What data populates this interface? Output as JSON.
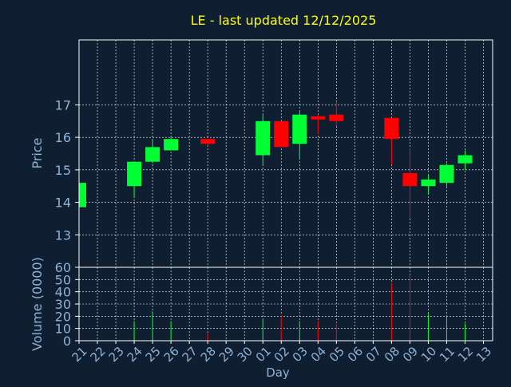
{
  "chart_data": [
    {
      "type": "candlestick",
      "title": "LE - last updated 12/12/2025",
      "ylabel": "Price",
      "ylim": [
        12,
        19
      ],
      "yticks": [
        13,
        14,
        15,
        16,
        17
      ],
      "grid": true,
      "categories": [
        "21",
        "22",
        "23",
        "24",
        "25",
        "26",
        "27",
        "28",
        "29",
        "30",
        "01",
        "02",
        "03",
        "04",
        "05",
        "06",
        "07",
        "08",
        "09",
        "10",
        "11",
        "12",
        "13"
      ],
      "candles": [
        {
          "day": "21",
          "open": 13.85,
          "close": 14.6,
          "low": 13.85,
          "high": 14.6,
          "direction": "up"
        },
        {
          "day": "24",
          "open": 14.5,
          "close": 15.25,
          "low": 14.15,
          "high": 15.25,
          "direction": "up"
        },
        {
          "day": "25",
          "open": 15.25,
          "close": 15.7,
          "low": 15.2,
          "high": 15.95,
          "direction": "up"
        },
        {
          "day": "26",
          "open": 15.6,
          "close": 15.95,
          "low": 15.6,
          "high": 16.0,
          "direction": "up"
        },
        {
          "day": "28",
          "open": 15.95,
          "close": 15.8,
          "low": 15.75,
          "high": 15.95,
          "direction": "down"
        },
        {
          "day": "01",
          "open": 15.45,
          "close": 16.5,
          "low": 15.15,
          "high": 16.7,
          "direction": "up"
        },
        {
          "day": "02",
          "open": 16.5,
          "close": 15.7,
          "low": 15.7,
          "high": 16.5,
          "direction": "down"
        },
        {
          "day": "03",
          "open": 15.8,
          "close": 16.7,
          "low": 15.35,
          "high": 16.8,
          "direction": "up"
        },
        {
          "day": "04",
          "open": 16.65,
          "close": 16.55,
          "low": 16.1,
          "high": 16.7,
          "direction": "down"
        },
        {
          "day": "05",
          "open": 16.7,
          "close": 16.5,
          "low": 16.35,
          "high": 17.1,
          "direction": "down"
        },
        {
          "day": "08",
          "open": 16.6,
          "close": 15.95,
          "low": 15.15,
          "high": 16.6,
          "direction": "down"
        },
        {
          "day": "09",
          "open": 14.9,
          "close": 14.5,
          "low": 13.5,
          "high": 15.65,
          "direction": "down"
        },
        {
          "day": "10",
          "open": 14.5,
          "close": 14.7,
          "low": 14.25,
          "high": 14.85,
          "direction": "up"
        },
        {
          "day": "11",
          "open": 14.6,
          "close": 15.15,
          "low": 14.45,
          "high": 15.2,
          "direction": "up"
        },
        {
          "day": "12",
          "open": 15.2,
          "close": 15.45,
          "low": 15.0,
          "high": 15.6,
          "direction": "up"
        }
      ]
    },
    {
      "type": "bar",
      "ylabel": "Volume (0000)",
      "xlabel": "Day",
      "ylim": [
        0,
        60
      ],
      "yticks": [
        0,
        10,
        20,
        30,
        40,
        50,
        60
      ],
      "grid": true,
      "categories": [
        "21",
        "22",
        "23",
        "24",
        "25",
        "26",
        "27",
        "28",
        "29",
        "30",
        "01",
        "02",
        "03",
        "04",
        "05",
        "06",
        "07",
        "08",
        "09",
        "10",
        "11",
        "12",
        "13"
      ],
      "values": [
        {
          "day": "21",
          "value": 2,
          "direction": "up"
        },
        {
          "day": "24",
          "value": 16,
          "direction": "up"
        },
        {
          "day": "25",
          "value": 24,
          "direction": "up"
        },
        {
          "day": "26",
          "value": 16,
          "direction": "up"
        },
        {
          "day": "28",
          "value": 6,
          "direction": "down"
        },
        {
          "day": "01",
          "value": 17,
          "direction": "up"
        },
        {
          "day": "02",
          "value": 21,
          "direction": "down"
        },
        {
          "day": "03",
          "value": 16,
          "direction": "up"
        },
        {
          "day": "04",
          "value": 16,
          "direction": "down"
        },
        {
          "day": "05",
          "value": 15,
          "direction": "down"
        },
        {
          "day": "08",
          "value": 47,
          "direction": "down"
        },
        {
          "day": "09",
          "value": 54,
          "direction": "down"
        },
        {
          "day": "10",
          "value": 22,
          "direction": "up"
        },
        {
          "day": "11",
          "value": 21,
          "direction": "up"
        },
        {
          "day": "12",
          "value": 14,
          "direction": "up"
        }
      ]
    }
  ],
  "colors": {
    "background": "#0f1e30",
    "title": "#ffff00",
    "axis_text": "#8db3d8",
    "frame": "#ffffff",
    "grid": "#ffffff",
    "up": "#00ff33",
    "down": "#ff0000"
  }
}
